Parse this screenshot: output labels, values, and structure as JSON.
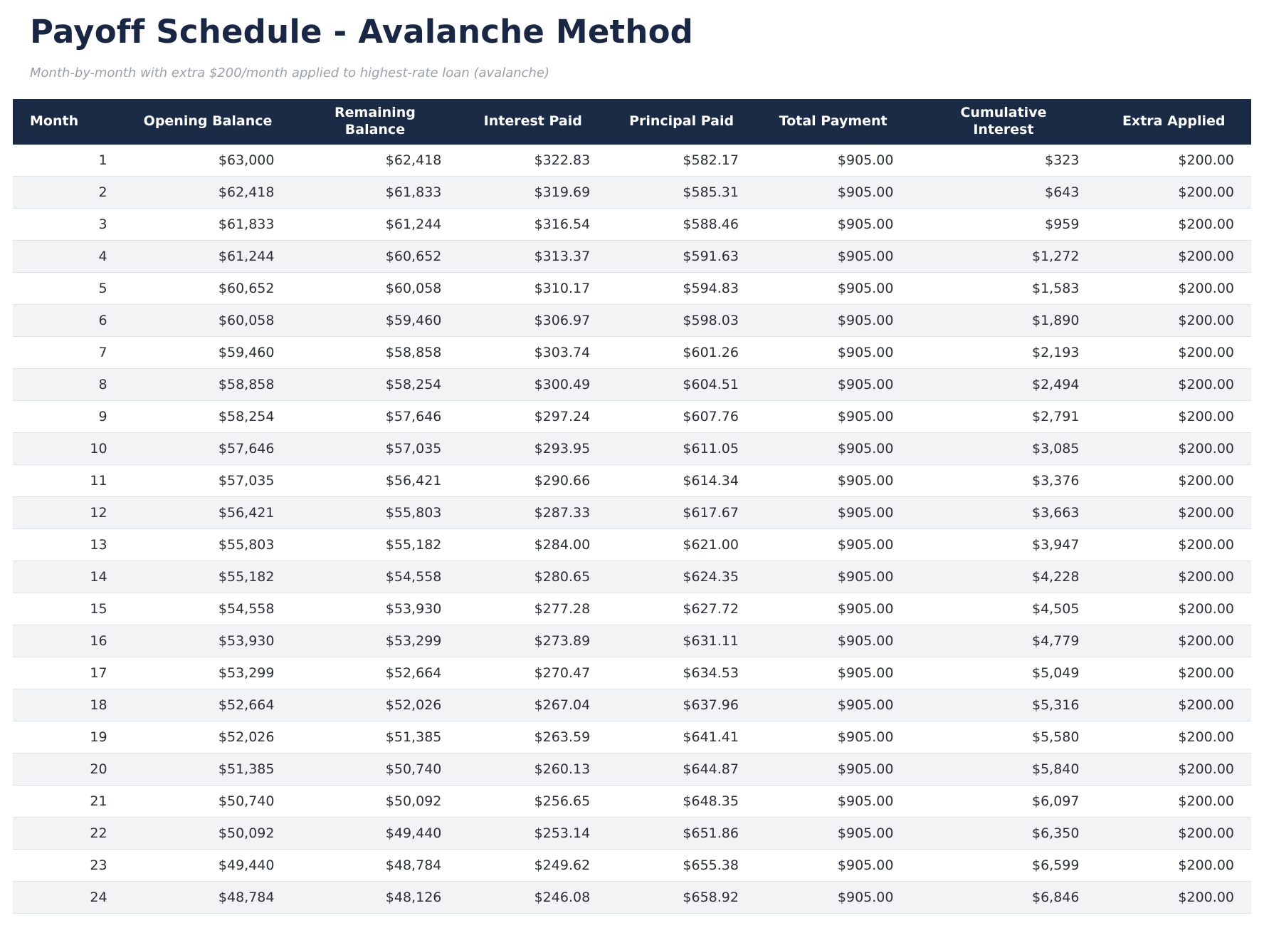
{
  "colors": {
    "header_bg": "#1b2a45",
    "header_text": "#ffffff",
    "title_text": "#1a2744",
    "subtitle_text": "#9aa0a9",
    "body_text": "#2b2f38",
    "row_alt_bg": "#f2f3f5",
    "row_border": "#dfe2e6",
    "page_bg": "#ffffff"
  },
  "chart_data": {
    "type": "table",
    "title": "Payoff Schedule - Avalanche Method",
    "subtitle": "Month-by-month with extra $200/month applied to highest-rate loan (avalanche)",
    "columns": [
      "Month",
      "Opening Balance",
      "Remaining Balance",
      "Interest Paid",
      "Principal Paid",
      "Total Payment",
      "Cumulative Interest",
      "Extra Applied"
    ],
    "rows": [
      [
        "1",
        "$63,000",
        "$62,418",
        "$322.83",
        "$582.17",
        "$905.00",
        "$323",
        "$200.00"
      ],
      [
        "2",
        "$62,418",
        "$61,833",
        "$319.69",
        "$585.31",
        "$905.00",
        "$643",
        "$200.00"
      ],
      [
        "3",
        "$61,833",
        "$61,244",
        "$316.54",
        "$588.46",
        "$905.00",
        "$959",
        "$200.00"
      ],
      [
        "4",
        "$61,244",
        "$60,652",
        "$313.37",
        "$591.63",
        "$905.00",
        "$1,272",
        "$200.00"
      ],
      [
        "5",
        "$60,652",
        "$60,058",
        "$310.17",
        "$594.83",
        "$905.00",
        "$1,583",
        "$200.00"
      ],
      [
        "6",
        "$60,058",
        "$59,460",
        "$306.97",
        "$598.03",
        "$905.00",
        "$1,890",
        "$200.00"
      ],
      [
        "7",
        "$59,460",
        "$58,858",
        "$303.74",
        "$601.26",
        "$905.00",
        "$2,193",
        "$200.00"
      ],
      [
        "8",
        "$58,858",
        "$58,254",
        "$300.49",
        "$604.51",
        "$905.00",
        "$2,494",
        "$200.00"
      ],
      [
        "9",
        "$58,254",
        "$57,646",
        "$297.24",
        "$607.76",
        "$905.00",
        "$2,791",
        "$200.00"
      ],
      [
        "10",
        "$57,646",
        "$57,035",
        "$293.95",
        "$611.05",
        "$905.00",
        "$3,085",
        "$200.00"
      ],
      [
        "11",
        "$57,035",
        "$56,421",
        "$290.66",
        "$614.34",
        "$905.00",
        "$3,376",
        "$200.00"
      ],
      [
        "12",
        "$56,421",
        "$55,803",
        "$287.33",
        "$617.67",
        "$905.00",
        "$3,663",
        "$200.00"
      ],
      [
        "13",
        "$55,803",
        "$55,182",
        "$284.00",
        "$621.00",
        "$905.00",
        "$3,947",
        "$200.00"
      ],
      [
        "14",
        "$55,182",
        "$54,558",
        "$280.65",
        "$624.35",
        "$905.00",
        "$4,228",
        "$200.00"
      ],
      [
        "15",
        "$54,558",
        "$53,930",
        "$277.28",
        "$627.72",
        "$905.00",
        "$4,505",
        "$200.00"
      ],
      [
        "16",
        "$53,930",
        "$53,299",
        "$273.89",
        "$631.11",
        "$905.00",
        "$4,779",
        "$200.00"
      ],
      [
        "17",
        "$53,299",
        "$52,664",
        "$270.47",
        "$634.53",
        "$905.00",
        "$5,049",
        "$200.00"
      ],
      [
        "18",
        "$52,664",
        "$52,026",
        "$267.04",
        "$637.96",
        "$905.00",
        "$5,316",
        "$200.00"
      ],
      [
        "19",
        "$52,026",
        "$51,385",
        "$263.59",
        "$641.41",
        "$905.00",
        "$5,580",
        "$200.00"
      ],
      [
        "20",
        "$51,385",
        "$50,740",
        "$260.13",
        "$644.87",
        "$905.00",
        "$5,840",
        "$200.00"
      ],
      [
        "21",
        "$50,740",
        "$50,092",
        "$256.65",
        "$648.35",
        "$905.00",
        "$6,097",
        "$200.00"
      ],
      [
        "22",
        "$50,092",
        "$49,440",
        "$253.14",
        "$651.86",
        "$905.00",
        "$6,350",
        "$200.00"
      ],
      [
        "23",
        "$49,440",
        "$48,784",
        "$249.62",
        "$655.38",
        "$905.00",
        "$6,599",
        "$200.00"
      ],
      [
        "24",
        "$48,784",
        "$48,126",
        "$246.08",
        "$658.92",
        "$905.00",
        "$6,846",
        "$200.00"
      ]
    ],
    "layout": {
      "alternating_rows": true,
      "header_style": "dark-navy-bar",
      "value_alignment": "right"
    }
  }
}
